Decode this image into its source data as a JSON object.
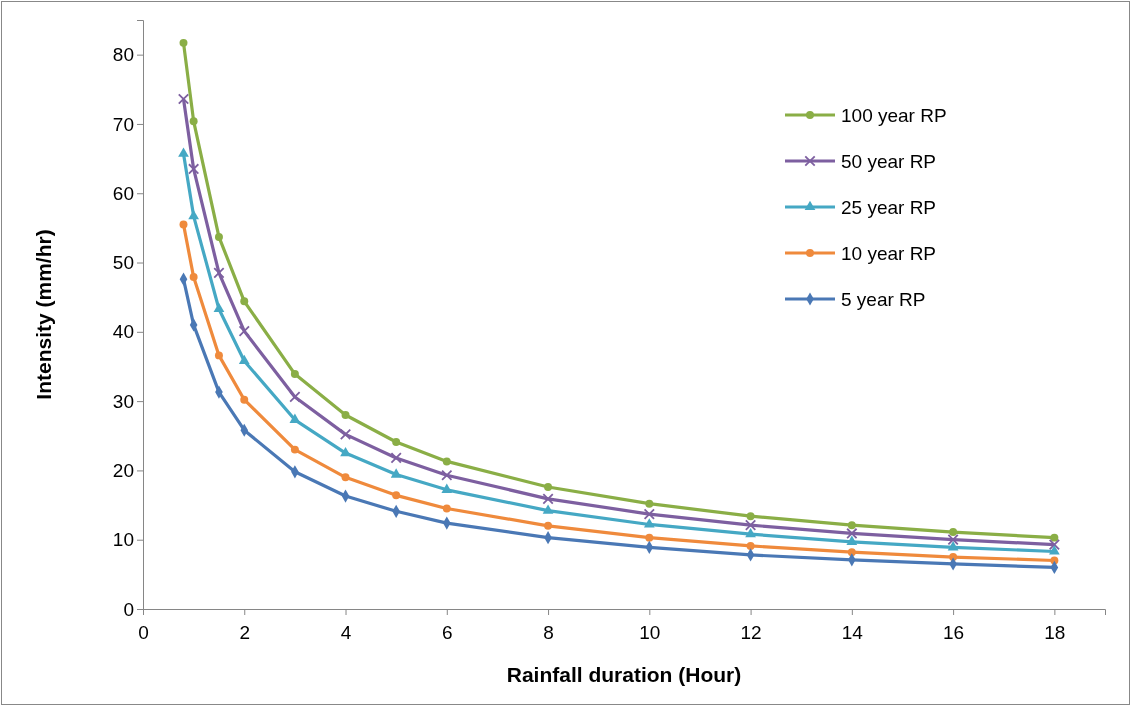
{
  "chart_data": {
    "type": "line",
    "xlabel": "Rainfall duration (Hour)",
    "ylabel": "Intensity (mm/hr)",
    "x": [
      0.8,
      1,
      1.5,
      2,
      3,
      4,
      5,
      6,
      8,
      10,
      12,
      14,
      16,
      18
    ],
    "xlim": [
      0,
      19
    ],
    "xticks": [
      0,
      2,
      4,
      6,
      8,
      10,
      12,
      14,
      16,
      18
    ],
    "ylim": [
      0,
      85
    ],
    "yticks": [
      0,
      10,
      20,
      30,
      40,
      50,
      60,
      70,
      80
    ],
    "grid": false,
    "legend": "top right",
    "line_style": "solid",
    "series": [
      {
        "name": "100 year RP",
        "color": "#8aae46",
        "marker": "circle",
        "values": [
          81.7,
          70.4,
          53.7,
          44.4,
          33.9,
          28.0,
          24.1,
          21.3,
          17.6,
          15.2,
          13.4,
          12.1,
          11.1,
          10.3
        ]
      },
      {
        "name": "50 year RP",
        "color": "#7d5fa0",
        "marker": "cross",
        "values": [
          73.6,
          63.5,
          48.5,
          40.1,
          30.6,
          25.2,
          21.8,
          19.3,
          15.9,
          13.7,
          12.1,
          10.9,
          10.0,
          9.3
        ]
      },
      {
        "name": "25 year RP",
        "color": "#45a8c4",
        "marker": "triangle",
        "values": [
          65.7,
          56.7,
          43.3,
          35.8,
          27.3,
          22.5,
          19.4,
          17.2,
          14.2,
          12.2,
          10.8,
          9.7,
          8.9,
          8.3
        ]
      },
      {
        "name": "10 year RP",
        "color": "#ef8a3c",
        "marker": "circle",
        "values": [
          55.5,
          47.9,
          36.6,
          30.2,
          23.0,
          19.0,
          16.4,
          14.5,
          12.0,
          10.3,
          9.1,
          8.2,
          7.5,
          7.0
        ]
      },
      {
        "name": "5 year RP",
        "color": "#4a78b5",
        "marker": "diamond",
        "values": [
          47.6,
          41.0,
          31.3,
          25.8,
          19.8,
          16.3,
          14.1,
          12.4,
          10.3,
          8.9,
          7.8,
          7.1,
          6.5,
          6.0
        ]
      }
    ]
  }
}
